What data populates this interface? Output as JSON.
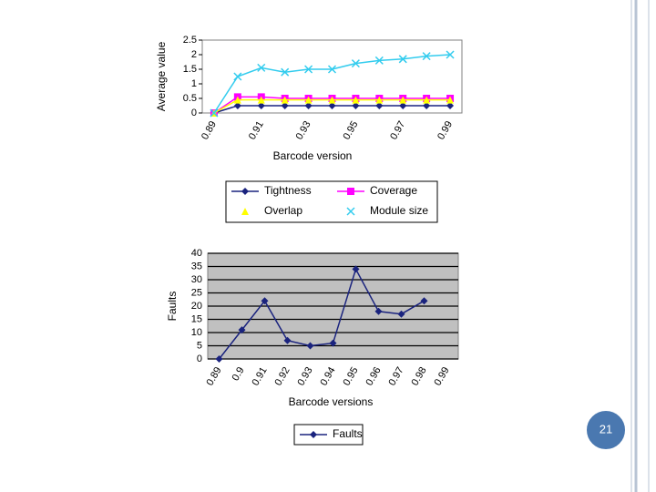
{
  "page_number": "21",
  "chart_data": [
    {
      "type": "line",
      "ylabel": "Average value",
      "xlabel": "Barcode version",
      "categories": [
        "0.89",
        null,
        "0.91",
        null,
        "0.93",
        null,
        "0.95",
        null,
        "0.97",
        null,
        "0.99"
      ],
      "ylim": [
        0,
        2.5
      ],
      "yticks": [
        0,
        0.5,
        1,
        1.5,
        2,
        2.5
      ],
      "grid": false,
      "series": [
        {
          "name": "Tightness",
          "color": "#1a237e",
          "marker": "diamond",
          "values": [
            0,
            0.25,
            0.25,
            0.25,
            0.25,
            0.25,
            0.25,
            0.25,
            0.25,
            0.25,
            0.25
          ]
        },
        {
          "name": "Coverage",
          "color": "#ff00ff",
          "marker": "square",
          "values": [
            0,
            0.55,
            0.55,
            0.5,
            0.5,
            0.5,
            0.5,
            0.5,
            0.5,
            0.5,
            0.5
          ]
        },
        {
          "name": "Overlap",
          "color": "#ffff00",
          "marker": "triangle",
          "values": [
            0,
            0.45,
            0.45,
            0.45,
            0.45,
            0.45,
            0.45,
            0.45,
            0.45,
            0.45,
            0.45
          ]
        },
        {
          "name": "Module size",
          "color": "#33ccee",
          "marker": "x",
          "values": [
            0,
            1.25,
            1.55,
            1.4,
            1.5,
            1.5,
            1.7,
            1.8,
            1.85,
            1.95,
            2.0
          ]
        }
      ]
    },
    {
      "type": "line",
      "ylabel": "Faults",
      "xlabel": "Barcode versions",
      "categories": [
        "0.89",
        "0.9",
        "0.91",
        "0.92",
        "0.93",
        "0.94",
        "0.95",
        "0.96",
        "0.97",
        "0.98",
        "0.99"
      ],
      "ylim": [
        0,
        40
      ],
      "yticks": [
        0,
        5,
        10,
        15,
        20,
        25,
        30,
        35,
        40
      ],
      "grid": true,
      "series": [
        {
          "name": "Faults",
          "color": "#1a237e",
          "marker": "diamond",
          "values": [
            0,
            11,
            22,
            7,
            5,
            6,
            34,
            18,
            17,
            22,
            null
          ]
        }
      ]
    }
  ]
}
